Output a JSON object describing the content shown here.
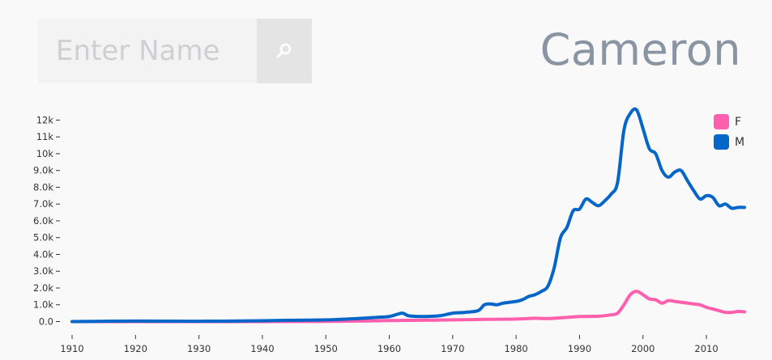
{
  "search": {
    "placeholder": "Enter Name"
  },
  "icons": {
    "search_button": "search-icon"
  },
  "header": {
    "title": "Cameron"
  },
  "legend": [
    {
      "label": "F",
      "color": "#ff5fad"
    },
    {
      "label": "M",
      "color": "#0466c8"
    }
  ],
  "chart_data": {
    "type": "line",
    "xlim": [
      1910,
      2016
    ],
    "ylim": [
      0,
      12600
    ],
    "x_ticks": [
      1910,
      1920,
      1930,
      1940,
      1950,
      1960,
      1970,
      1980,
      1990,
      2000,
      2010
    ],
    "y_ticks": [
      0,
      1000,
      2000,
      3000,
      4000,
      5000,
      6000,
      7000,
      8000,
      9000,
      10000,
      11000,
      12000
    ],
    "y_tick_labels": [
      "0.0",
      "1.0k",
      "2.0k",
      "3.0k",
      "4.0k",
      "5.0k",
      "6.0k",
      "7.0k",
      "8.0k",
      "9.0k",
      "10k",
      "11k",
      "12k"
    ],
    "grid": false,
    "legend_position": "top-right",
    "series": [
      {
        "name": "F",
        "color": "#ff5fad",
        "x": [
          1910,
          1940,
          1950,
          1955,
          1960,
          1965,
          1970,
          1975,
          1980,
          1983,
          1985,
          1988,
          1990,
          1993,
          1995,
          1996,
          1997,
          1998,
          1999,
          2000,
          2001,
          2002,
          2003,
          2004,
          2005,
          2006,
          2007,
          2008,
          2009,
          2010,
          2011,
          2012,
          2013,
          2014,
          2015,
          2016
        ],
        "y": [
          0,
          0,
          10,
          30,
          60,
          80,
          100,
          130,
          150,
          200,
          180,
          250,
          300,
          320,
          400,
          500,
          1000,
          1600,
          1800,
          1600,
          1350,
          1300,
          1100,
          1250,
          1200,
          1150,
          1100,
          1050,
          1000,
          850,
          750,
          650,
          550,
          550,
          600,
          580
        ]
      },
      {
        "name": "M",
        "color": "#0466c8",
        "x": [
          1910,
          1920,
          1930,
          1940,
          1945,
          1950,
          1955,
          1958,
          1960,
          1962,
          1963,
          1965,
          1968,
          1970,
          1972,
          1974,
          1975,
          1976,
          1977,
          1978,
          1980,
          1981,
          1982,
          1983,
          1984,
          1985,
          1986,
          1987,
          1988,
          1989,
          1990,
          1991,
          1992,
          1993,
          1994,
          1995,
          1996,
          1997,
          1998,
          1999,
          2000,
          2001,
          2002,
          2003,
          2004,
          2005,
          2006,
          2007,
          2008,
          2009,
          2010,
          2011,
          2012,
          2013,
          2014,
          2015,
          2016
        ],
        "y": [
          0,
          30,
          20,
          50,
          80,
          100,
          180,
          250,
          300,
          500,
          350,
          300,
          350,
          500,
          550,
          650,
          1000,
          1050,
          1000,
          1100,
          1200,
          1300,
          1500,
          1600,
          1800,
          2100,
          3200,
          5000,
          5600,
          6600,
          6700,
          7300,
          7100,
          6900,
          7200,
          7600,
          8300,
          11400,
          12400,
          12600,
          11500,
          10300,
          10000,
          9000,
          8600,
          8900,
          9000,
          8400,
          7800,
          7300,
          7500,
          7400,
          6900,
          7000,
          6750,
          6800,
          6800
        ]
      }
    ]
  }
}
